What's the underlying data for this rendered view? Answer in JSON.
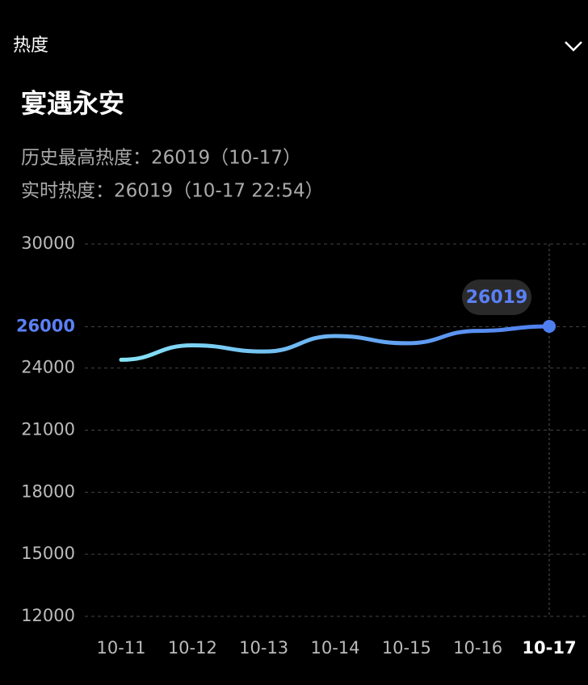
{
  "header": {
    "title": "热度"
  },
  "topic": {
    "title": "宴遇永安",
    "peak": "历史最高热度：26019（10-17）",
    "realtime": "实时热度：26019（10-17 22:54）"
  },
  "chart_data": {
    "type": "line",
    "categories": [
      "10-11",
      "10-12",
      "10-13",
      "10-14",
      "10-15",
      "10-16",
      "10-17"
    ],
    "series": [
      {
        "values": [
          24400,
          25100,
          24800,
          25550,
          25200,
          25800,
          26019
        ],
        "color": "#4f7ef0",
        "gradient": [
          "#86e3f5",
          "#4f7ef0"
        ]
      }
    ],
    "ylim": [
      12000,
      30000
    ],
    "yticks": [
      12000,
      15000,
      18000,
      21000,
      24000,
      26000,
      30000
    ],
    "highlight_color": "#5b80f5",
    "grid": true
  }
}
